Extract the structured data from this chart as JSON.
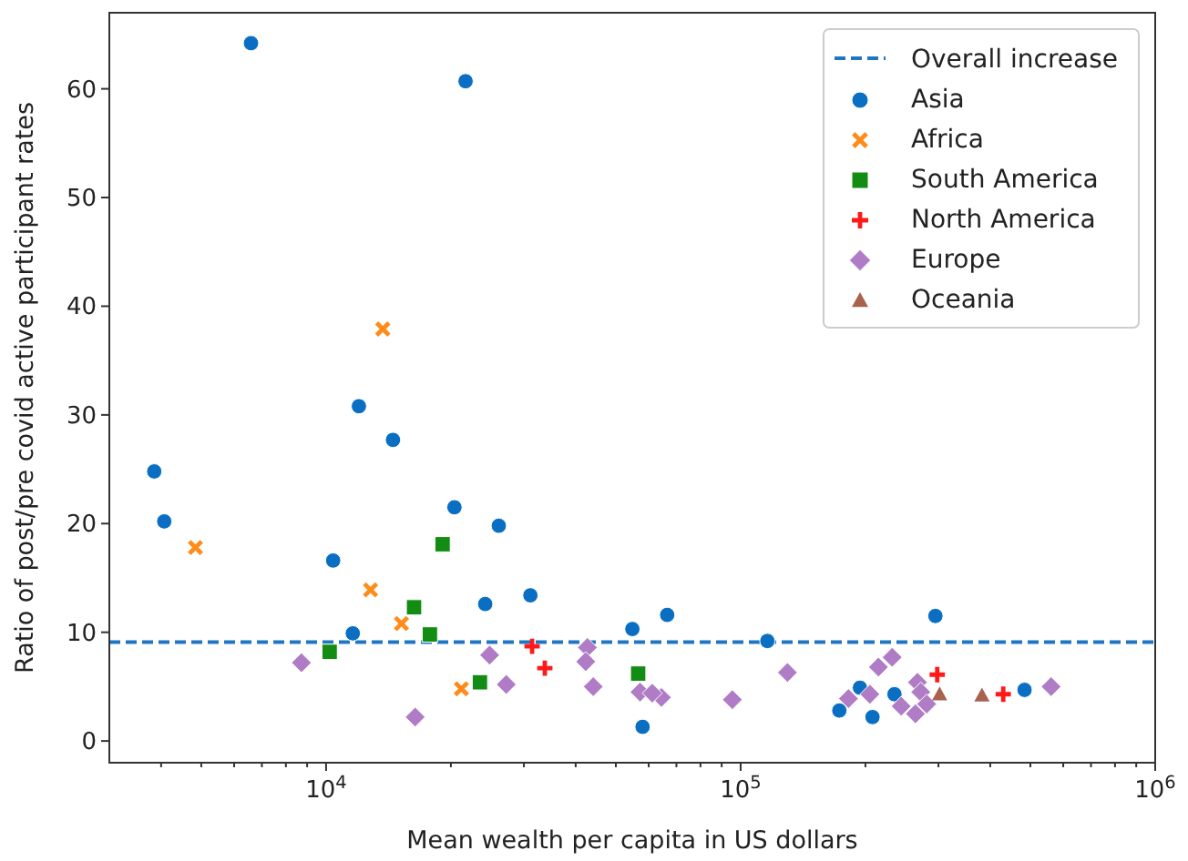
{
  "chart_data": {
    "type": "scatter",
    "xlabel": "Mean wealth per capita in US dollars",
    "ylabel": "Ratio of post/pre covid active participant rates",
    "log": "x",
    "xlim": [
      3000,
      1000000
    ],
    "xticks": [
      {
        "value": 4000,
        "label": null
      },
      {
        "value": 5000,
        "label": null
      },
      {
        "value": 6000,
        "label": null
      },
      {
        "value": 7000,
        "label": null
      },
      {
        "value": 8000,
        "label": null
      },
      {
        "value": 9000,
        "label": null
      },
      {
        "value": 10000,
        "label": "10$^{4}$"
      },
      {
        "value": 20000,
        "label": null
      },
      {
        "value": 30000,
        "label": null
      },
      {
        "value": 40000,
        "label": null
      },
      {
        "value": 50000,
        "label": null
      },
      {
        "value": 60000,
        "label": null
      },
      {
        "value": 70000,
        "label": null
      },
      {
        "value": 80000,
        "label": null
      },
      {
        "value": 90000,
        "label": null
      },
      {
        "value": 100000,
        "label": "10$^{5}$"
      },
      {
        "value": 200000,
        "label": null
      },
      {
        "value": 300000,
        "label": null
      },
      {
        "value": 400000,
        "label": null
      },
      {
        "value": 500000,
        "label": null
      },
      {
        "value": 600000,
        "label": null
      },
      {
        "value": 700000,
        "label": null
      },
      {
        "value": 800000,
        "label": null
      },
      {
        "value": 900000,
        "label": null
      },
      {
        "value": 1000000,
        "label": "10$^{6}$"
      }
    ],
    "ylim": [
      -2,
      67
    ],
    "yticks": [
      0,
      10,
      20,
      30,
      40,
      50,
      60
    ],
    "grid": false,
    "legend": "top right",
    "ref_lines": [
      {
        "axis": "y",
        "value": 9.1,
        "label": "Overall increase",
        "color": "#1f77c4",
        "line_style": "dashed"
      }
    ],
    "series": [
      {
        "name": "Asia",
        "color": "#0a6fc2",
        "marker": "circle",
        "x": [
          6590,
          21700,
          12000,
          3850,
          4070,
          14500,
          20400,
          26100,
          10400,
          24200,
          31100,
          11600,
          54800,
          58000,
          66500,
          116000,
          173000,
          194000,
          208000,
          235000,
          295000,
          484000
        ],
        "values": [
          64.2,
          60.7,
          30.8,
          24.8,
          20.2,
          27.7,
          21.5,
          19.8,
          16.6,
          12.6,
          13.4,
          9.9,
          10.3,
          1.3,
          11.6,
          9.2,
          2.8,
          4.9,
          2.2,
          4.3,
          11.5,
          4.7
        ]
      },
      {
        "name": "Africa",
        "color": "#ff8c1a",
        "marker": "x",
        "x": [
          13700,
          4840,
          12800,
          15200,
          21200
        ],
        "values": [
          37.9,
          17.8,
          13.9,
          10.8,
          4.8
        ]
      },
      {
        "name": "South America",
        "color": "#128c12",
        "marker": "square",
        "x": [
          19100,
          16300,
          17800,
          10200,
          23500,
          56600
        ],
        "values": [
          18.1,
          12.3,
          9.8,
          8.2,
          5.4,
          6.2
        ]
      },
      {
        "name": "North America",
        "color": "#ff1a1a",
        "marker": "plus",
        "x": [
          31400,
          33700,
          298000,
          430000
        ],
        "values": [
          8.7,
          6.7,
          6.1,
          4.3
        ]
      },
      {
        "name": "Europe",
        "color": "#b07cc6",
        "marker": "diamond",
        "x": [
          8720,
          24800,
          42700,
          42300,
          27200,
          44100,
          16400,
          57200,
          64400,
          61200,
          95500,
          129700,
          182000,
          205000,
          215000,
          232000,
          244000,
          264000,
          267000,
          272000,
          281000,
          561000
        ],
        "values": [
          7.2,
          7.9,
          8.6,
          7.3,
          5.2,
          5.0,
          2.2,
          4.5,
          4.0,
          4.4,
          3.8,
          6.3,
          3.9,
          4.3,
          6.8,
          7.7,
          3.2,
          2.5,
          5.4,
          4.5,
          3.4,
          5.0
        ]
      },
      {
        "name": "Oceania",
        "color": "#a8624f",
        "marker": "triangle",
        "x": [
          302000,
          382000
        ],
        "values": [
          4.3,
          4.2
        ]
      }
    ]
  }
}
